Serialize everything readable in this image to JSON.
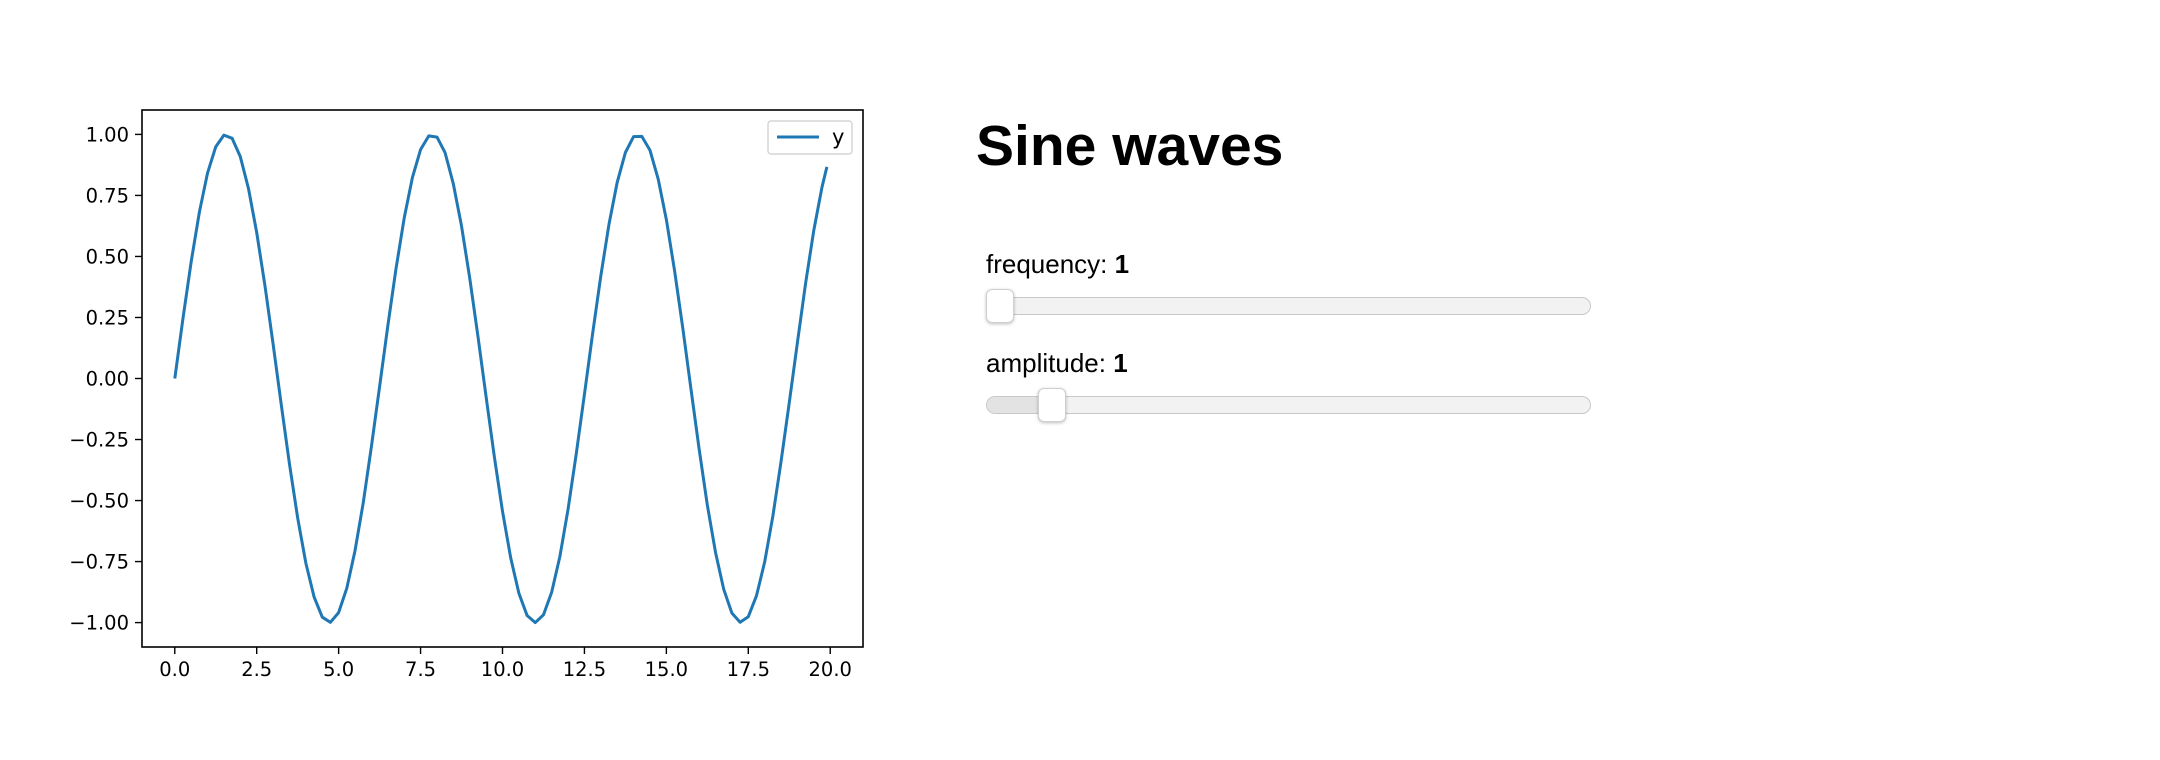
{
  "title": "Sine waves",
  "sliders": [
    {
      "id": "frequency",
      "label": "frequency:",
      "value": "1",
      "level": 0.0
    },
    {
      "id": "amplitude",
      "label": "amplitude:",
      "value": "1",
      "level": 0.09
    }
  ],
  "chart_data": {
    "type": "line",
    "title": "",
    "xlabel": "",
    "ylabel": "",
    "xlim": [
      -1.0,
      21.0
    ],
    "ylim": [
      -1.1,
      1.1
    ],
    "xticks": [
      "0.0",
      "2.5",
      "5.0",
      "7.5",
      "10.0",
      "12.5",
      "15.0",
      "17.5",
      "20.0"
    ],
    "xtick_values": [
      0,
      2.5,
      5,
      7.5,
      10,
      12.5,
      15,
      17.5,
      20
    ],
    "yticks": [
      "1.00",
      "0.75",
      "0.50",
      "0.25",
      "0.00",
      "−0.25",
      "−0.50",
      "−0.75",
      "−1.00"
    ],
    "ytick_values": [
      1,
      0.75,
      0.5,
      0.25,
      0,
      -0.25,
      -0.5,
      -0.75,
      -1
    ],
    "legend_position": "top-right",
    "grid": false,
    "series": [
      {
        "name": "y",
        "color": "#1f77b4",
        "x": [
          0,
          0.25,
          0.5,
          0.75,
          1,
          1.25,
          1.5,
          1.75,
          2,
          2.25,
          2.5,
          2.75,
          3,
          3.25,
          3.5,
          3.75,
          4,
          4.25,
          4.5,
          4.75,
          5,
          5.25,
          5.5,
          5.75,
          6,
          6.25,
          6.5,
          6.75,
          7,
          7.25,
          7.5,
          7.75,
          8,
          8.25,
          8.5,
          8.75,
          9,
          9.25,
          9.5,
          9.75,
          10,
          10.25,
          10.5,
          10.75,
          11,
          11.25,
          11.5,
          11.75,
          12,
          12.25,
          12.5,
          12.75,
          13,
          13.25,
          13.5,
          13.75,
          14,
          14.25,
          14.5,
          14.75,
          15,
          15.25,
          15.5,
          15.75,
          16,
          16.25,
          16.5,
          16.75,
          17,
          17.25,
          17.5,
          17.75,
          18,
          18.25,
          18.5,
          18.75,
          19,
          19.25,
          19.5,
          19.75,
          19.9
        ],
        "y": [
          0,
          0.247,
          0.479,
          0.682,
          0.841,
          0.949,
          0.997,
          0.984,
          0.909,
          0.778,
          0.598,
          0.382,
          0.141,
          -0.108,
          -0.351,
          -0.572,
          -0.757,
          -0.895,
          -0.978,
          -0.999,
          -0.959,
          -0.859,
          -0.706,
          -0.51,
          -0.279,
          -0.033,
          0.215,
          0.45,
          0.657,
          0.823,
          0.938,
          0.994,
          0.989,
          0.925,
          0.798,
          0.625,
          0.412,
          0.174,
          -0.075,
          -0.319,
          -0.544,
          -0.735,
          -0.88,
          -0.971,
          -1.0,
          -0.968,
          -0.875,
          -0.729,
          -0.537,
          -0.31,
          -0.066,
          0.183,
          0.42,
          0.632,
          0.804,
          0.926,
          0.991,
          0.992,
          0.935,
          0.817,
          0.65,
          0.441,
          0.206,
          -0.041,
          -0.288,
          -0.518,
          -0.712,
          -0.863,
          -0.961,
          -0.999,
          -0.976,
          -0.89,
          -0.751,
          -0.563,
          -0.339,
          -0.098,
          0.15,
          0.39,
          0.607,
          0.784,
          0.867
        ]
      }
    ]
  }
}
